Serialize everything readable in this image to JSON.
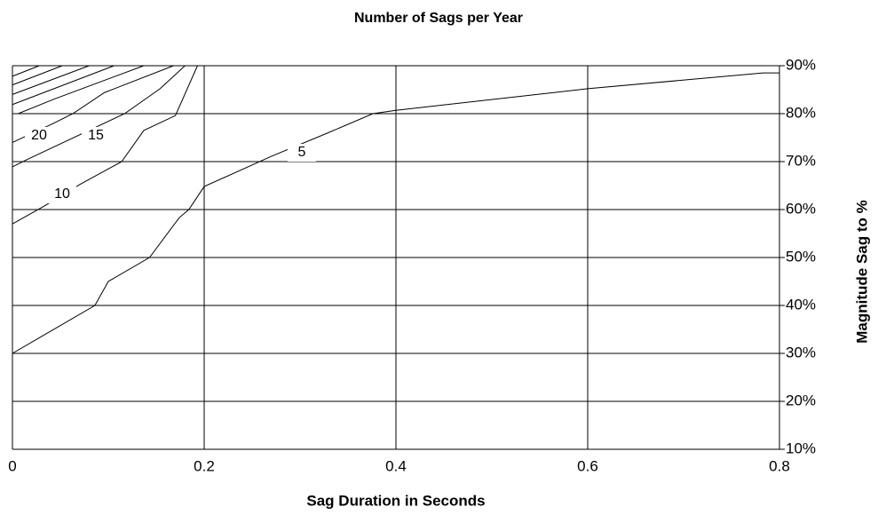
{
  "chart_data": {
    "type": "contour",
    "title": "Number of Sags per Year",
    "x_label": "Sag Duration in Seconds",
    "y_label": "Magnitude Sag to %",
    "xlim": [
      0,
      0.8
    ],
    "ylim": [
      10,
      90
    ],
    "xticks": [
      0,
      0.2,
      0.4,
      0.6,
      0.8
    ],
    "yticks": [
      {
        "value": 10,
        "label": "10%"
      },
      {
        "value": 20,
        "label": "20%"
      },
      {
        "value": 30,
        "label": "30%"
      },
      {
        "value": 40,
        "label": "40%"
      },
      {
        "value": 50,
        "label": "50%"
      },
      {
        "value": 60,
        "label": "60%"
      },
      {
        "value": 70,
        "label": "70%"
      },
      {
        "value": 80,
        "label": "80%"
      },
      {
        "value": 90,
        "label": "90%"
      }
    ],
    "grid": true,
    "color": "#000000",
    "series": [
      {
        "name": "5",
        "x": [
          0,
          0.086,
          0.1,
          0.143,
          0.174,
          0.184,
          0.2,
          0.27,
          0.328,
          0.376,
          0.4,
          0.6,
          0.783,
          0.8
        ],
        "values": [
          30,
          40,
          45,
          50,
          58.3,
          60,
          64.8,
          71.1,
          75.9,
          80,
          80.7,
          85.2,
          88.5,
          88.5
        ]
      },
      {
        "name": "10",
        "x": [
          0,
          0.033,
          0.07,
          0.114,
          0.137,
          0.17,
          0.193
        ],
        "values": [
          57,
          60.7,
          65.2,
          70,
          76.5,
          79.6,
          90
        ]
      },
      {
        "name": "15",
        "x": [
          0,
          0.015,
          0.117,
          0.154,
          0.18
        ],
        "values": [
          68.9,
          70.4,
          80,
          85.2,
          90
        ]
      },
      {
        "name": "20",
        "x": [
          0,
          0.043,
          0.063,
          0.096,
          0.168
        ],
        "values": [
          74,
          78,
          80,
          84.4,
          90
        ]
      },
      {
        "x": [
          0.006,
          0.043,
          0.137
        ],
        "values": [
          80,
          83,
          90
        ]
      },
      {
        "x": [
          0,
          0.106
        ],
        "values": [
          81.9,
          90
        ]
      },
      {
        "x": [
          0,
          0.08
        ],
        "values": [
          84,
          90
        ]
      },
      {
        "x": [
          0,
          0.052
        ],
        "values": [
          86,
          90
        ]
      },
      {
        "x": [
          0,
          0.028
        ],
        "values": [
          87.8,
          90
        ]
      }
    ]
  }
}
